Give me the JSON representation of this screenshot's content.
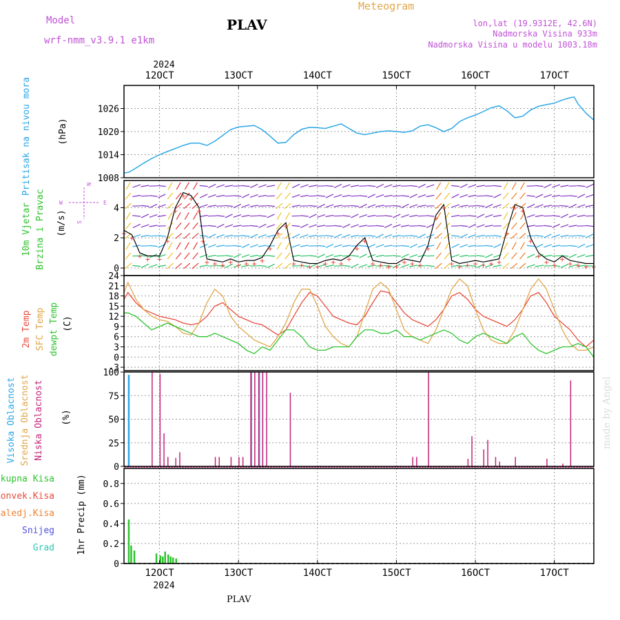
{
  "header": {
    "model_label": "Model",
    "model_name": "wrf-nmm_v3.9.1 e1km",
    "station": "PLAV",
    "title": "Meteogram",
    "lonlat": "lon,lat (19.9312E, 42.6N)",
    "elevation": "Nadmorska Visina 933m",
    "model_elevation": "Nadmorska Visina u modelu 1003.18m",
    "footer_station": "PLAV",
    "watermark": "made by Angel"
  },
  "time_axis": {
    "year": "2024",
    "ticks": [
      "12OCT",
      "13OCT",
      "14OCT",
      "15OCT",
      "16OCT",
      "17OCT"
    ],
    "tick_days": [
      12,
      13,
      14,
      15,
      16,
      17
    ],
    "start_day": 11.55,
    "end_day": 17.5
  },
  "colors": {
    "pressure": "#2aa6e6",
    "temp": "#e84a3a",
    "sfc_temp": "#e0a64a",
    "dewpt": "#2dc22d",
    "high_cloud": "#2aa6e6",
    "mid_cloud": "#d8b24a",
    "low_cloud": "#c2237a",
    "precip_total": "#2dc22d",
    "label_magenta": "#c052d6"
  },
  "chart_data": [
    {
      "type": "line",
      "panel": "pressure",
      "ylabel": "Pritisak na nivou mora",
      "unit": "(hPa)",
      "ylim": [
        1008,
        1032
      ],
      "yticks": [
        1008,
        1014,
        1020,
        1026
      ],
      "series": [
        {
          "x": [
            11.55,
            11.62,
            11.7,
            11.8,
            11.9,
            12.0,
            12.1,
            12.2,
            12.3,
            12.4,
            12.5,
            12.6,
            12.7,
            12.8,
            12.9,
            13.0,
            13.1,
            13.2,
            13.3,
            13.4,
            13.5,
            13.6,
            13.7,
            13.8,
            13.9,
            14.0,
            14.1,
            14.2,
            14.3,
            14.4,
            14.5,
            14.6,
            14.7,
            14.8,
            14.9,
            15.0,
            15.1,
            15.2,
            15.3,
            15.4,
            15.5,
            15.6,
            15.7,
            15.8,
            15.9,
            16.0,
            16.1,
            16.2,
            16.3,
            16.4,
            16.5,
            16.6,
            16.7,
            16.8,
            16.9,
            17.0,
            17.1,
            17.2,
            17.25,
            17.3,
            17.4,
            17.5
          ],
          "values": [
            1009.2,
            1009.5,
            1010.5,
            1011.8,
            1013.0,
            1014.0,
            1014.8,
            1015.6,
            1016.4,
            1017.0,
            1017.0,
            1016.4,
            1017.5,
            1019.0,
            1020.5,
            1021.2,
            1021.4,
            1021.6,
            1020.5,
            1018.8,
            1017.0,
            1017.2,
            1019.2,
            1020.6,
            1021.1,
            1021.0,
            1020.8,
            1021.4,
            1022.0,
            1020.8,
            1019.6,
            1019.2,
            1019.6,
            1020.0,
            1020.2,
            1020.0,
            1019.8,
            1020.2,
            1021.4,
            1021.8,
            1021.0,
            1020.0,
            1020.8,
            1022.6,
            1023.6,
            1024.3,
            1025.2,
            1026.2,
            1026.7,
            1025.4,
            1023.6,
            1024.0,
            1025.6,
            1026.6,
            1027.0,
            1027.4,
            1028.2,
            1028.8,
            1029.0,
            1027.2,
            1024.8,
            1023.0
          ]
        }
      ]
    },
    {
      "type": "line",
      "panel": "wind",
      "ylabel": [
        "10m Vjetar",
        "Brzina i Pravac"
      ],
      "unit": "(m/s)",
      "compass": {
        "n": "N",
        "s": "S",
        "e": "E",
        "w": "W"
      },
      "ylim": [
        -0.5,
        5.8
      ],
      "yticks": [
        0,
        2,
        4
      ],
      "series": [
        {
          "name": "10m",
          "x": [
            11.55,
            11.65,
            11.75,
            11.85,
            12.0,
            12.1,
            12.2,
            12.3,
            12.4,
            12.5,
            12.55,
            12.6,
            12.7,
            12.8,
            12.9,
            13.0,
            13.1,
            13.2,
            13.3,
            13.4,
            13.5,
            13.6,
            13.7,
            13.8,
            13.9,
            14.0,
            14.1,
            14.2,
            14.3,
            14.4,
            14.5,
            14.6,
            14.7,
            14.8,
            14.9,
            15.0,
            15.1,
            15.2,
            15.3,
            15.4,
            15.5,
            15.6,
            15.7,
            15.8,
            15.9,
            16.0,
            16.1,
            16.2,
            16.3,
            16.4,
            16.5,
            16.6,
            16.7,
            16.8,
            16.9,
            17.0,
            17.1,
            17.2,
            17.3,
            17.4,
            17.5
          ],
          "values": [
            2.5,
            2.2,
            1.0,
            0.8,
            0.8,
            2.0,
            4.0,
            5.0,
            4.8,
            4.0,
            2.0,
            0.6,
            0.5,
            0.4,
            0.6,
            0.4,
            0.5,
            0.5,
            0.7,
            1.5,
            2.5,
            3.0,
            0.5,
            0.4,
            0.3,
            0.3,
            0.5,
            0.6,
            0.5,
            0.8,
            1.5,
            2.0,
            0.5,
            0.4,
            0.3,
            0.3,
            0.6,
            0.5,
            0.4,
            1.5,
            3.5,
            4.2,
            0.5,
            0.3,
            0.4,
            0.5,
            0.4,
            0.5,
            0.6,
            2.5,
            4.2,
            4.0,
            2.0,
            1.0,
            0.6,
            0.4,
            0.8,
            0.5,
            0.4,
            0.3,
            0.3
          ]
        }
      ]
    },
    {
      "type": "line",
      "panel": "temperature",
      "ylabel": [
        "2m Temp",
        "SFC Temp",
        "dewpt Temp"
      ],
      "unit": "(C)",
      "ylim": [
        -4,
        24
      ],
      "yticks": [
        -3,
        0,
        3,
        6,
        9,
        12,
        15,
        18,
        21,
        24
      ],
      "series": [
        {
          "name": "2m Temp",
          "x": [
            11.55,
            11.6,
            11.7,
            11.8,
            11.9,
            12.0,
            12.1,
            12.2,
            12.3,
            12.4,
            12.5,
            12.6,
            12.7,
            12.8,
            12.9,
            13.0,
            13.1,
            13.2,
            13.3,
            13.4,
            13.5,
            13.6,
            13.7,
            13.8,
            13.9,
            14.0,
            14.1,
            14.2,
            14.3,
            14.4,
            14.5,
            14.6,
            14.7,
            14.8,
            14.9,
            15.0,
            15.1,
            15.2,
            15.3,
            15.4,
            15.5,
            15.6,
            15.7,
            15.8,
            15.9,
            16.0,
            16.1,
            16.2,
            16.3,
            16.4,
            16.5,
            16.6,
            16.7,
            16.8,
            16.9,
            17.0,
            17.1,
            17.2,
            17.3,
            17.4,
            17.5
          ],
          "values": [
            17,
            19,
            16,
            14,
            13,
            12,
            11.5,
            11,
            10,
            9.5,
            10,
            12,
            15,
            16,
            14,
            12,
            11,
            10,
            9.5,
            8,
            6.5,
            8,
            12,
            16,
            19,
            18,
            15,
            12,
            11,
            10,
            9.5,
            12,
            16,
            19.5,
            19,
            16,
            13,
            11,
            10,
            9,
            11,
            14,
            18,
            19,
            17,
            14,
            12,
            11,
            10,
            9,
            11,
            14,
            18,
            19,
            16,
            12,
            10,
            8,
            5,
            3,
            5
          ]
        },
        {
          "name": "SFC Temp",
          "x": [
            11.55,
            11.6,
            11.7,
            11.8,
            11.9,
            12.0,
            12.1,
            12.2,
            12.3,
            12.4,
            12.5,
            12.6,
            12.7,
            12.8,
            12.9,
            13.0,
            13.1,
            13.2,
            13.3,
            13.4,
            13.5,
            13.6,
            13.7,
            13.8,
            13.9,
            14.0,
            14.1,
            14.2,
            14.3,
            14.4,
            14.5,
            14.6,
            14.7,
            14.8,
            14.9,
            15.0,
            15.1,
            15.2,
            15.3,
            15.4,
            15.5,
            15.6,
            15.7,
            15.8,
            15.9,
            16.0,
            16.1,
            16.2,
            16.3,
            16.4,
            16.5,
            16.6,
            16.7,
            16.8,
            16.9,
            17.0,
            17.1,
            17.2,
            17.3,
            17.4,
            17.5
          ],
          "values": [
            19,
            22,
            17,
            14,
            12,
            11,
            10.5,
            9,
            7,
            6.5,
            10,
            16,
            20,
            18,
            12,
            9,
            7,
            5,
            4,
            3,
            6,
            10,
            16,
            20,
            20,
            15,
            9,
            6,
            4,
            3,
            6,
            13,
            20,
            22,
            20,
            14,
            8,
            6,
            5,
            4,
            8,
            14,
            20,
            23,
            21,
            14,
            8,
            5,
            4,
            4,
            8,
            14,
            20,
            23,
            20,
            14,
            8,
            4,
            2,
            2,
            3
          ]
        },
        {
          "name": "dewpt Temp",
          "x": [
            11.55,
            11.6,
            11.7,
            11.8,
            11.9,
            12.0,
            12.1,
            12.2,
            12.3,
            12.4,
            12.5,
            12.6,
            12.7,
            12.8,
            12.9,
            13.0,
            13.1,
            13.2,
            13.3,
            13.4,
            13.5,
            13.6,
            13.7,
            13.8,
            13.9,
            14.0,
            14.1,
            14.2,
            14.3,
            14.4,
            14.5,
            14.6,
            14.7,
            14.8,
            14.9,
            15.0,
            15.1,
            15.2,
            15.3,
            15.4,
            15.5,
            15.6,
            15.7,
            15.8,
            15.9,
            16.0,
            16.1,
            16.2,
            16.3,
            16.4,
            16.5,
            16.6,
            16.7,
            16.8,
            16.9,
            17.0,
            17.1,
            17.2,
            17.3,
            17.4,
            17.5
          ],
          "values": [
            13,
            13,
            12,
            10,
            8,
            9,
            10,
            9,
            8,
            7,
            6,
            6,
            7,
            6,
            5,
            4,
            2,
            1,
            3,
            2,
            5,
            8,
            8,
            6,
            3,
            2,
            2,
            3,
            3,
            3,
            6,
            8,
            8,
            7,
            7,
            8,
            6,
            6,
            5,
            6,
            7,
            8,
            7,
            5,
            4,
            6,
            7,
            6,
            5,
            4,
            6,
            7,
            4,
            2,
            1,
            2,
            3,
            3,
            4,
            3,
            0
          ]
        }
      ]
    },
    {
      "type": "bar",
      "panel": "clouds",
      "ylabel": [
        "Visoka Oblacnost",
        "Srednja Oblacnost",
        "Niska Oblacnost"
      ],
      "unit": "(%)",
      "ylim": [
        0,
        100
      ],
      "yticks": [
        0,
        25,
        50,
        75,
        100
      ],
      "series": [
        {
          "name": "Visoka Oblacnost",
          "x": [
            11.6,
            13.15,
            13.25
          ],
          "values": [
            97,
            100,
            100
          ]
        },
        {
          "name": "Srednja Oblacnost",
          "x": [
            13.2,
            13.3
          ],
          "values": [
            100,
            100
          ]
        },
        {
          "name": "Niska Oblacnost",
          "x": [
            11.9,
            12.0,
            12.05,
            12.1,
            12.2,
            12.25,
            12.7,
            12.75,
            12.9,
            13.0,
            13.05,
            13.15,
            13.2,
            13.25,
            13.3,
            13.35,
            13.65,
            14.6,
            15.2,
            15.25,
            15.4,
            15.9,
            15.95,
            16.1,
            16.15,
            16.25,
            16.3,
            16.5,
            16.9,
            17.1,
            17.2
          ],
          "values": [
            100,
            98,
            35,
            10,
            9,
            15,
            10,
            10,
            10,
            10,
            10,
            100,
            100,
            100,
            100,
            100,
            78,
            0,
            10,
            10,
            100,
            8,
            32,
            18,
            28,
            10,
            5,
            10,
            8,
            3,
            91
          ]
        }
      ]
    },
    {
      "type": "bar",
      "panel": "precip",
      "ylabel": "1hr Precip (mm)",
      "ylim": [
        0,
        0.95
      ],
      "yticks": [
        0,
        0.2,
        0.4,
        0.6,
        0.8
      ],
      "legend": [
        "Ukupna Kisa",
        "Konvek.Kisa",
        "Zaledj.Kisa",
        "Snijeg",
        "Grad"
      ],
      "series": [
        {
          "name": "Ukupna Kisa",
          "x": [
            11.6,
            11.63,
            11.67,
            11.95,
            12.0,
            12.03,
            12.06,
            12.1,
            12.13,
            12.16,
            12.2
          ],
          "values": [
            0.44,
            0.18,
            0.13,
            0.1,
            0.08,
            0.07,
            0.12,
            0.09,
            0.07,
            0.06,
            0.05
          ]
        }
      ]
    }
  ]
}
